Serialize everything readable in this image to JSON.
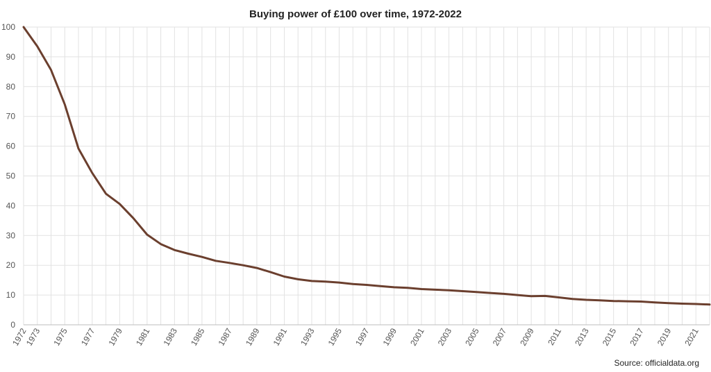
{
  "colors": {
    "line": "#6b3f2e"
  },
  "source": "Source: officialdata.org",
  "chart_data": {
    "type": "line",
    "title": "Buying power of £100 over time, 1972-2022",
    "xlabel": "",
    "ylabel": "",
    "xlim": [
      1972,
      2022
    ],
    "ylim": [
      0,
      100
    ],
    "y_ticks": [
      "0",
      "10",
      "20",
      "30",
      "40",
      "50",
      "60",
      "70",
      "80",
      "90",
      "100"
    ],
    "x_ticks": [
      "1972",
      "1973",
      "1975",
      "1977",
      "1979",
      "1981",
      "1983",
      "1985",
      "1987",
      "1989",
      "1991",
      "1993",
      "1995",
      "1997",
      "1999",
      "2001",
      "2003",
      "2005",
      "2007",
      "2009",
      "2011",
      "2013",
      "2015",
      "2017",
      "2019",
      "2021"
    ],
    "grid": true,
    "legend": "none",
    "series": [
      {
        "x": [
          1972,
          1973,
          1974,
          1975,
          1976,
          1977,
          1978,
          1979,
          1980,
          1981,
          1982,
          1983,
          1984,
          1985,
          1986,
          1987,
          1988,
          1989,
          1990,
          1991,
          1992,
          1993,
          1994,
          1995,
          1996,
          1997,
          1998,
          1999,
          2000,
          2001,
          2002,
          2003,
          2004,
          2005,
          2006,
          2007,
          2008,
          2009,
          2010,
          2011,
          2012,
          2013,
          2014,
          2015,
          2016,
          2017,
          2018,
          2019,
          2020,
          2021,
          2022
        ],
        "values": [
          100,
          93.5,
          85.6,
          74,
          59.2,
          51,
          44,
          40.6,
          35.8,
          30.3,
          27.1,
          25.1,
          23.9,
          22.8,
          21.5,
          20.8,
          20,
          19.1,
          17.7,
          16.2,
          15.3,
          14.7,
          14.5,
          14.2,
          13.7,
          13.4,
          13,
          12.6,
          12.4,
          12,
          11.8,
          11.6,
          11.3,
          11,
          10.7,
          10.4,
          10,
          9.6,
          9.7,
          9.2,
          8.7,
          8.4,
          8.2,
          8,
          7.9,
          7.8,
          7.5,
          7.3,
          7.1,
          7,
          6.8
        ]
      }
    ]
  }
}
